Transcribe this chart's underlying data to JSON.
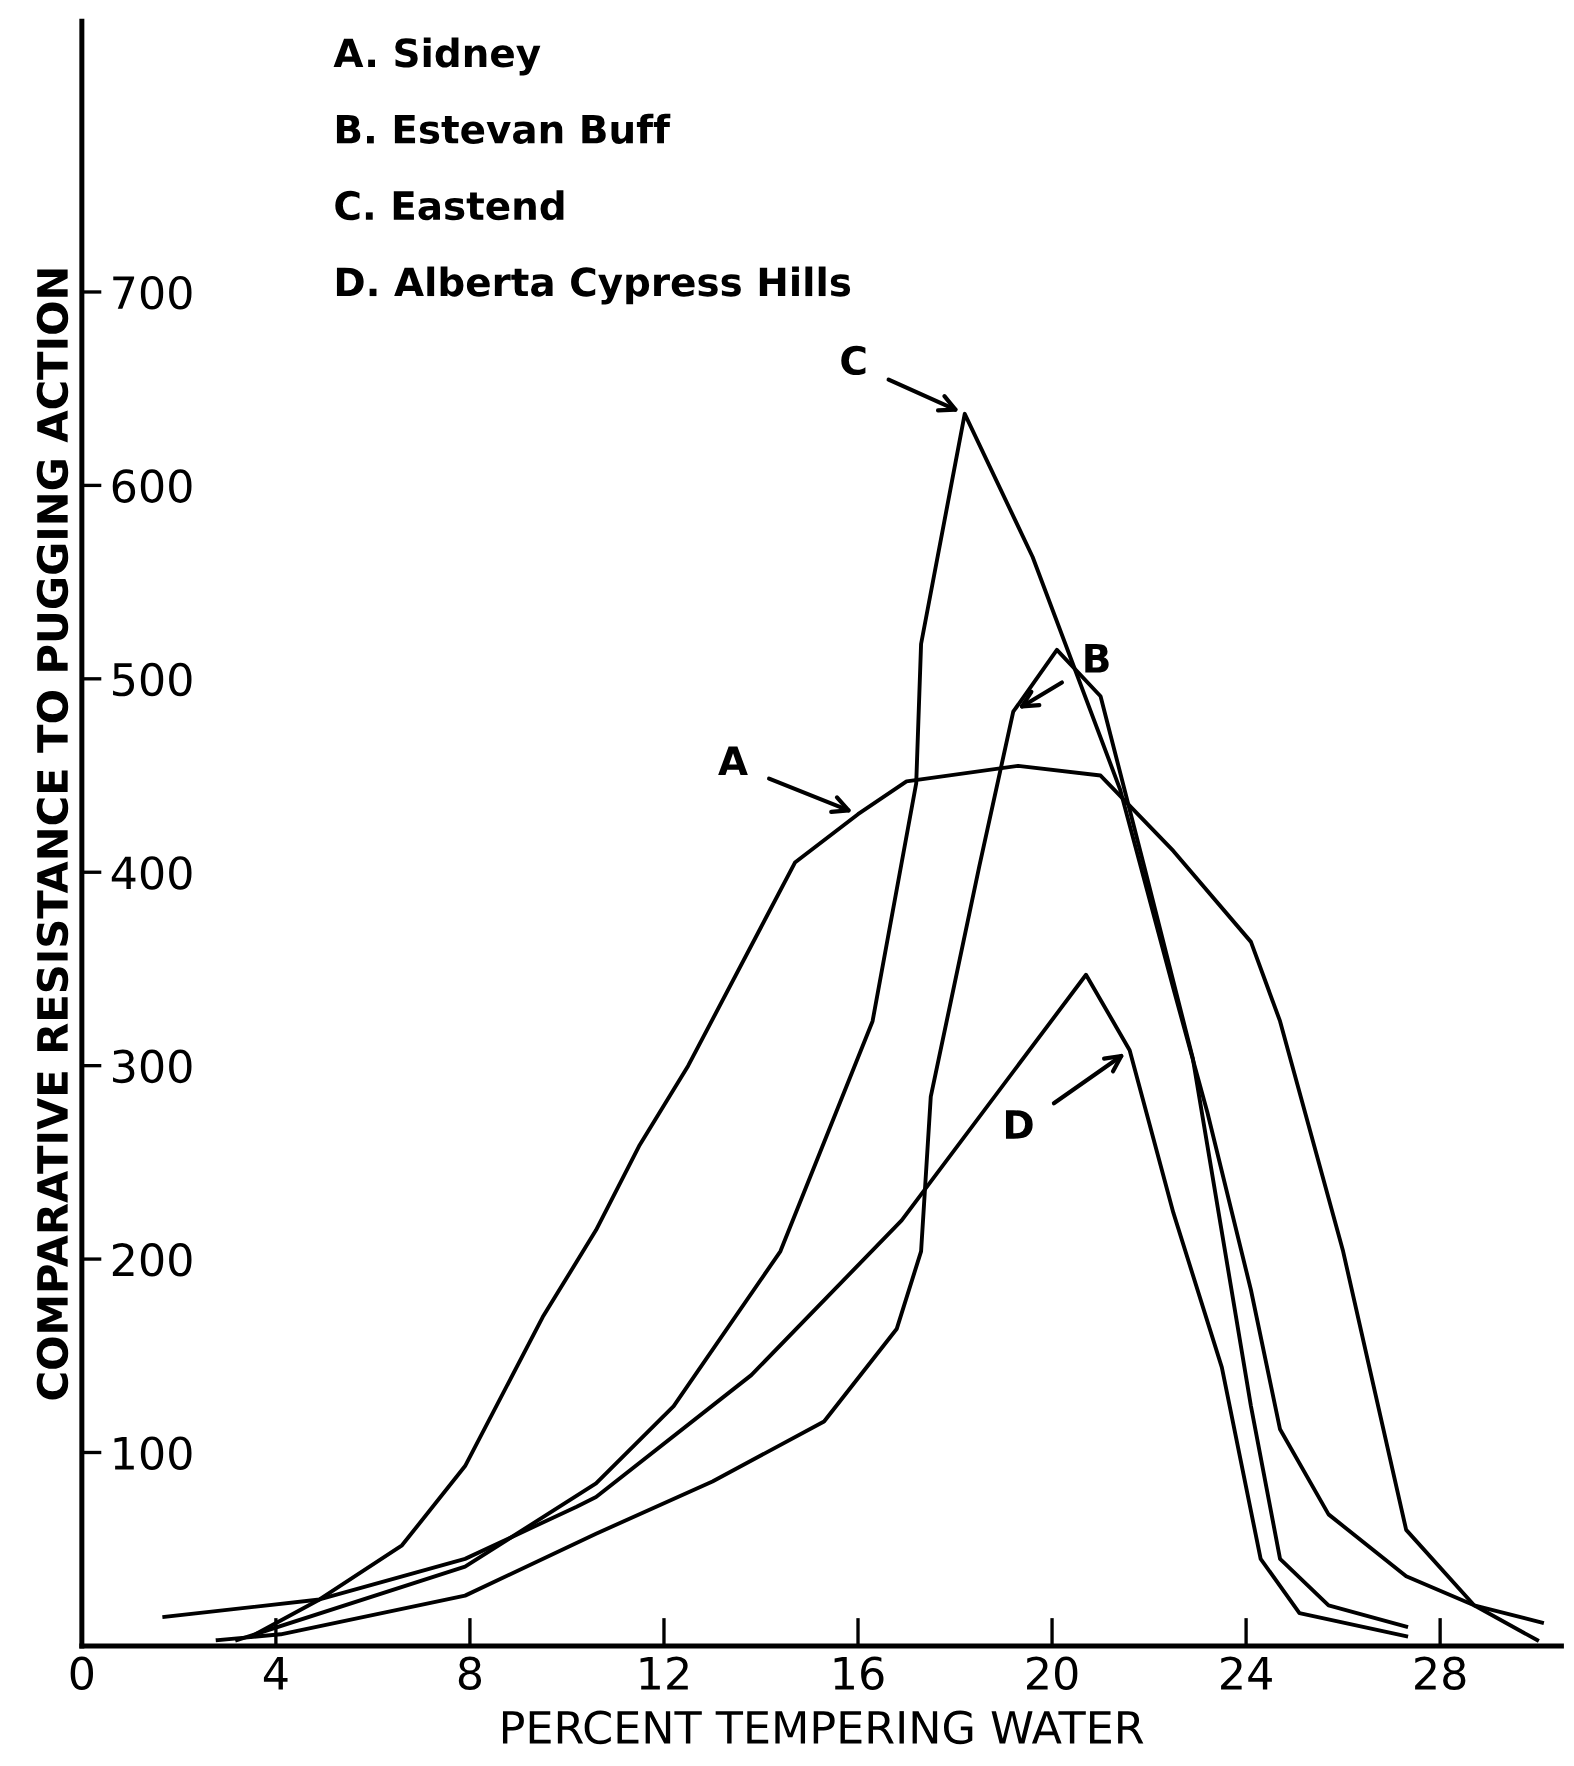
{
  "chart_data": {
    "type": "line",
    "xlabel": "PERCENT TEMPERING WATER",
    "ylabel": "COMPARATIVE RESISTANCE TO PUGGING ACTION",
    "xlim": [
      0,
      30.5
    ],
    "ylim": [
      0,
      840
    ],
    "xticks": [
      0,
      4,
      8,
      12,
      16,
      20,
      24,
      28
    ],
    "yticks": [
      {
        "value": 0,
        "label": null
      },
      100,
      200,
      300,
      400,
      500,
      600,
      700
    ],
    "grid": false,
    "legend": false,
    "marker": "none",
    "line_style": "solid",
    "series": [
      {
        "name": "A",
        "color": "#000000",
        "x": [
          3.5,
          4.9,
          6.6,
          7.9,
          9.5,
          10.6,
          11.5,
          12.5,
          14.7,
          16,
          17,
          19.3,
          21,
          22.5,
          24.1,
          24.7,
          26,
          27.3,
          28.7,
          30
        ],
        "values": [
          5,
          24,
          52,
          93,
          170,
          215,
          259,
          300,
          405,
          430,
          447,
          455,
          450,
          411,
          364,
          323,
          204,
          60,
          21,
          3
        ]
      },
      {
        "name": "B",
        "color": "#000000",
        "x": [
          2.8,
          4.1,
          7.9,
          10.6,
          13.0,
          15.3,
          16.8,
          17.3,
          17.5,
          18.5,
          19.2,
          20.1,
          21.0,
          21.9,
          22.9,
          24.1,
          24.7,
          25.7,
          27.3
        ],
        "values": [
          3,
          6,
          26,
          58,
          85,
          116,
          164,
          204,
          284,
          403,
          483,
          515,
          491,
          403,
          304,
          124,
          45,
          21,
          10
        ]
      },
      {
        "name": "C",
        "color": "#000000",
        "x": [
          3.2,
          7.9,
          10.6,
          12.2,
          14.4,
          16.3,
          17.2,
          17.3,
          18.2,
          19.6,
          21.4,
          22.5,
          23.2,
          24.1,
          24.7,
          25.7,
          27.3,
          28.7,
          30.1
        ],
        "values": [
          3,
          41,
          84,
          124,
          204,
          323,
          446,
          518,
          637,
          563,
          443,
          340,
          276,
          184,
          112,
          68,
          36,
          21,
          12
        ]
      },
      {
        "name": "D",
        "color": "#000000",
        "x": [
          1.7,
          4.9,
          7.9,
          10.2,
          10.6,
          13.8,
          16.9,
          20.7,
          21.6,
          22.5,
          23.5,
          24.3,
          25.1,
          27.3
        ],
        "values": [
          15,
          24,
          45,
          72,
          77,
          140,
          220,
          347,
          308,
          224,
          144,
          45,
          17,
          5
        ]
      }
    ],
    "annotations": [
      "A. Sidney",
      "B. Estevan Buff",
      "C. Eastend",
      "D. Alberta Cypress Hills"
    ]
  }
}
